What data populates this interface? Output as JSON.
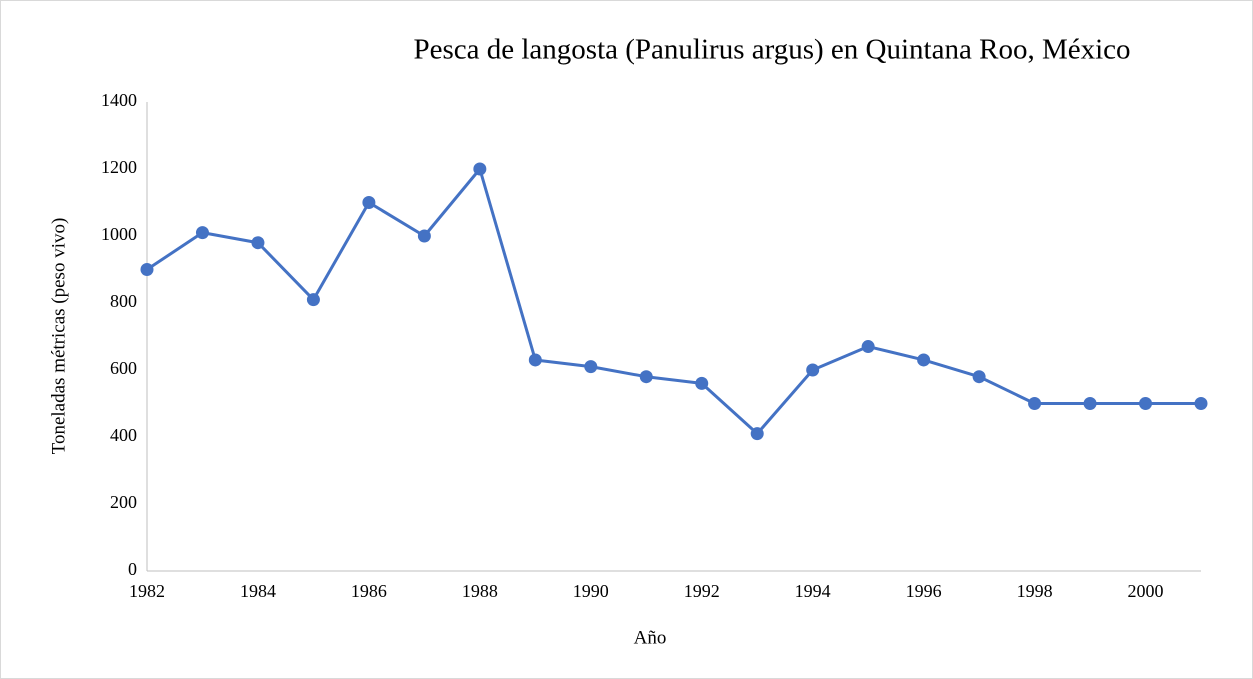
{
  "chart_data": {
    "type": "line",
    "title": "Pesca de langosta (Panulirus argus) en Quintana Roo, México",
    "x_label": "Año",
    "y_label": "Toneladas métricas (peso vivo)",
    "x": [
      1982,
      1983,
      1984,
      1985,
      1986,
      1987,
      1988,
      1989,
      1990,
      1991,
      1992,
      1993,
      1994,
      1995,
      1996,
      1997,
      1998,
      1999,
      2000,
      2001
    ],
    "values": [
      900,
      1010,
      980,
      810,
      1100,
      1000,
      1200,
      630,
      610,
      580,
      560,
      410,
      600,
      670,
      630,
      580,
      500,
      500,
      500,
      500
    ],
    "color": "#4472c4",
    "xlim": [
      1982,
      2001
    ],
    "xticks": [
      1982,
      1984,
      1986,
      1988,
      1990,
      1992,
      1994,
      1996,
      1998,
      2000
    ],
    "ylim": [
      0,
      1400
    ],
    "yticks": [
      0,
      200,
      400,
      600,
      800,
      1000,
      1200,
      1400
    ],
    "grid": false
  }
}
